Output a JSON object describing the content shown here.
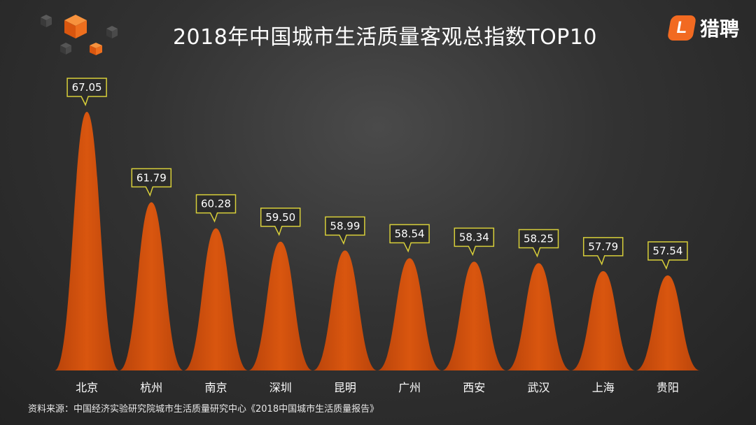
{
  "title": "2018年中国城市生活质量客观总指数TOP10",
  "logo": {
    "mark": "L",
    "text": "猎聘"
  },
  "source": "资料来源：中国经济实验研究院城市生活质量研究中心《2018中国城市生活质量报告》",
  "colors": {
    "peak": "#d9560f",
    "peak_edge": "#b8430a",
    "label_border": "#d8cf3a",
    "background": "#333333"
  },
  "chart_data": {
    "type": "area",
    "categories": [
      "北京",
      "杭州",
      "南京",
      "深圳",
      "昆明",
      "广州",
      "西安",
      "武汉",
      "上海",
      "贵阳"
    ],
    "values": [
      67.05,
      61.79,
      60.28,
      59.5,
      58.99,
      58.54,
      58.34,
      58.25,
      57.79,
      57.54
    ],
    "data_labels": [
      "67.05",
      "61.79",
      "60.28",
      "59.50",
      "58.99",
      "58.54",
      "58.34",
      "58.25",
      "57.79",
      "57.54"
    ],
    "legend": "none",
    "grid": false
  }
}
